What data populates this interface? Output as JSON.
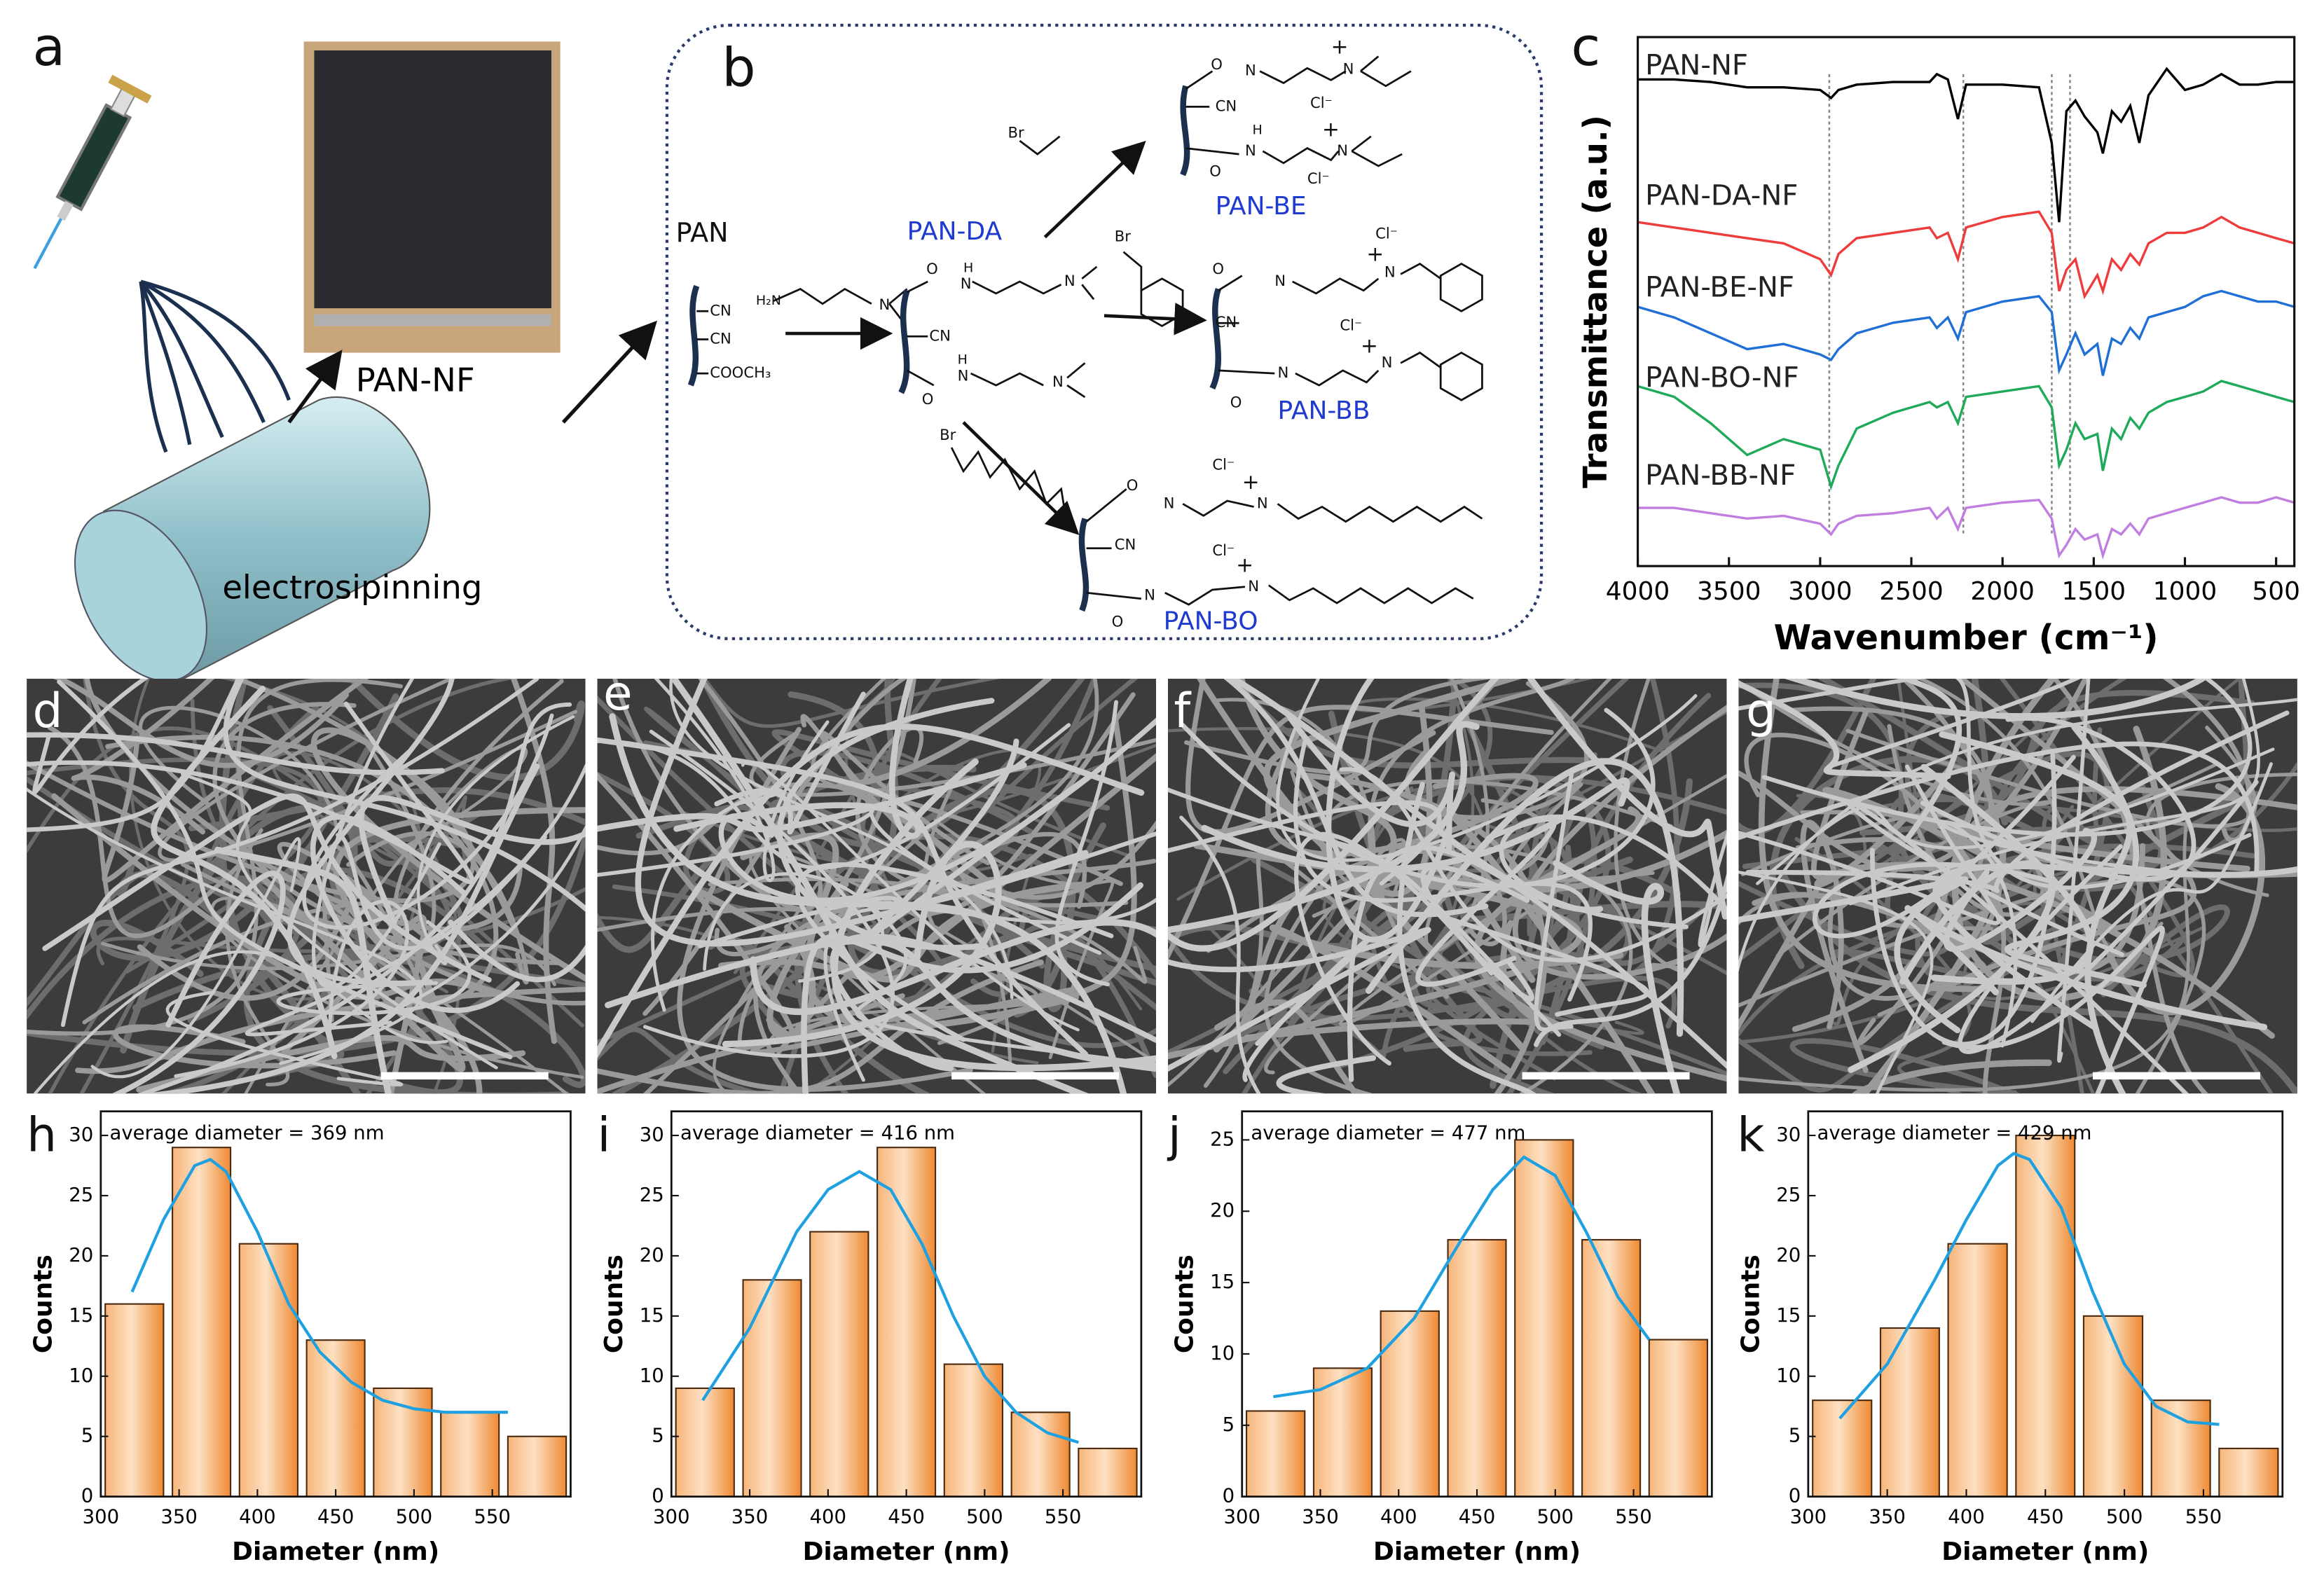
{
  "panel_labels": [
    "a",
    "b",
    "c",
    "d",
    "e",
    "f",
    "g",
    "h",
    "i",
    "j",
    "k"
  ],
  "panel_a": {
    "photo_label": "PAN-NF",
    "drum_label": "electrosipinning"
  },
  "scheme": {
    "texts": [
      "PAN",
      "CN",
      "CN",
      "COOCH₃",
      "H₂N",
      "N",
      "PAN-DA",
      "O",
      "N",
      "H",
      "N",
      "CN",
      "H",
      "N",
      "N",
      "O",
      "Br",
      "O",
      "N",
      "+",
      "N",
      "CN",
      "Cl⁻",
      "H",
      "N",
      "O",
      "+",
      "N",
      "Cl⁻",
      "PAN-BE",
      "Br",
      "Cl⁻",
      "+",
      "N",
      "O",
      "N",
      "CN",
      "Cl⁻",
      "+",
      "N",
      "N",
      "O",
      "PAN-BB",
      "Br",
      "Cl⁻",
      "+",
      "N",
      "O",
      "N",
      "CN",
      "Cl⁻",
      "+",
      "N",
      "N",
      "O",
      "PAN-BO"
    ]
  },
  "chart_data": [
    {
      "type": "line",
      "xlabel": "Wavenumber (cm⁻¹)",
      "ylabel": "Transmittance (a.u.)",
      "xlim": [
        4000,
        400
      ],
      "ylim": [
        0,
        100
      ],
      "xticks": [
        4000,
        3500,
        3000,
        2500,
        2000,
        1500,
        1000,
        500
      ],
      "reference_lines": [
        2950,
        2215,
        1730,
        1630
      ],
      "x": [
        4000,
        3800,
        3600,
        3400,
        3200,
        3000,
        2940,
        2900,
        2800,
        2600,
        2400,
        2360,
        2300,
        2245,
        2200,
        2000,
        1800,
        1730,
        1690,
        1650,
        1600,
        1550,
        1480,
        1450,
        1400,
        1350,
        1300,
        1250,
        1200,
        1100,
        1000,
        900,
        800,
        700,
        600,
        500,
        400
      ],
      "series": [
        {
          "name": "PAN-NF",
          "color": "#000000",
          "values": [
            92,
            92,
            91.5,
            90.5,
            90.5,
            90,
            88.5,
            90,
            91,
            91.5,
            91.5,
            93,
            92,
            84.5,
            91,
            91,
            90.5,
            80,
            65,
            86,
            88,
            85,
            82,
            78,
            86,
            84,
            87,
            80,
            89,
            94,
            90,
            91,
            93,
            91,
            91,
            91.5,
            91.5
          ]
        },
        {
          "name": "PAN-DA-NF",
          "color": "#ee3b3b",
          "values": [
            65,
            64,
            63,
            62,
            61,
            58,
            55,
            59,
            62,
            63,
            64,
            62,
            63,
            58,
            64,
            66,
            67,
            63,
            52,
            56,
            58,
            51,
            55,
            52,
            58,
            56,
            59,
            57,
            61,
            63,
            63,
            64,
            66,
            64,
            63,
            62,
            61
          ]
        },
        {
          "name": "PAN-BE-NF",
          "color": "#1f6fd6",
          "values": [
            49,
            47,
            44,
            41,
            42,
            40,
            39,
            41,
            44,
            46,
            47,
            45,
            47,
            43,
            48,
            50,
            51,
            48,
            37,
            40,
            44,
            40,
            42,
            36,
            43,
            42,
            45,
            43,
            47,
            48,
            49,
            51,
            52,
            51,
            50,
            50,
            49
          ]
        },
        {
          "name": "PAN-BO-NF",
          "color": "#1faa5a",
          "values": [
            34,
            32,
            27,
            21,
            24,
            22,
            15,
            19,
            26,
            29,
            31,
            30,
            31,
            27,
            32,
            33,
            34,
            30,
            19,
            22,
            27,
            24,
            25,
            18,
            26,
            24,
            28,
            26,
            29,
            31,
            32,
            33,
            35,
            34,
            33,
            32,
            31
          ]
        },
        {
          "name": "PAN-BB-NF",
          "color": "#c07ee0",
          "values": [
            11,
            11,
            10,
            9,
            9.5,
            8,
            6,
            8,
            9.5,
            10,
            11,
            9,
            11,
            7,
            11,
            12,
            12.5,
            9,
            2,
            4,
            7,
            5,
            6,
            2,
            7,
            6,
            8,
            6,
            9,
            10,
            11,
            12,
            13,
            12,
            12,
            13,
            12
          ]
        }
      ]
    },
    {
      "type": "histogram",
      "annotation": "average diameter = 369 nm",
      "xlabel": "Diameter (nm)",
      "ylabel": "Counts",
      "xlim": [
        300,
        600
      ],
      "ylim": [
        0,
        32
      ],
      "xticks": [
        300,
        350,
        400,
        450,
        500,
        550
      ],
      "yticks": [
        0,
        5,
        10,
        15,
        20,
        25,
        30
      ],
      "bins": [
        300,
        342.9,
        385.7,
        428.6,
        471.4,
        514.3,
        557.1,
        600
      ],
      "values": [
        16,
        29,
        21,
        13,
        9,
        7,
        5
      ],
      "fit": {
        "color": "#1fa0e0",
        "x": [
          320,
          340,
          360,
          370,
          380,
          400,
          420,
          440,
          460,
          480,
          500,
          520,
          560
        ],
        "values": [
          17,
          23,
          27.5,
          28,
          27,
          22,
          16,
          12,
          9.5,
          8,
          7.3,
          7,
          7
        ]
      }
    },
    {
      "type": "histogram",
      "annotation": "average diameter = 416 nm",
      "xlabel": "Diameter (nm)",
      "ylabel": "Counts",
      "xlim": [
        300,
        600
      ],
      "ylim": [
        0,
        32
      ],
      "xticks": [
        300,
        350,
        400,
        450,
        500,
        550
      ],
      "yticks": [
        0,
        5,
        10,
        15,
        20,
        25,
        30
      ],
      "bins": [
        300,
        342.9,
        385.7,
        428.6,
        471.4,
        514.3,
        557.1,
        600
      ],
      "values": [
        9,
        18,
        22,
        29,
        11,
        7,
        4
      ],
      "fit": {
        "color": "#1fa0e0",
        "x": [
          320,
          350,
          380,
          400,
          420,
          440,
          460,
          480,
          500,
          520,
          540,
          560
        ],
        "values": [
          8,
          14,
          22,
          25.5,
          27,
          25.5,
          21,
          15,
          10,
          7,
          5.3,
          4.5
        ]
      }
    },
    {
      "type": "histogram",
      "annotation": "average diameter = 477 nm",
      "xlabel": "Diameter (nm)",
      "ylabel": "Counts",
      "xlim": [
        300,
        600
      ],
      "ylim": [
        0,
        27
      ],
      "xticks": [
        300,
        350,
        400,
        450,
        500,
        550
      ],
      "yticks": [
        0,
        5,
        10,
        15,
        20,
        25
      ],
      "bins": [
        300,
        342.9,
        385.7,
        428.6,
        471.4,
        514.3,
        557.1,
        600
      ],
      "values": [
        6,
        9,
        13,
        18,
        25,
        18,
        11
      ],
      "fit": {
        "color": "#1fa0e0",
        "x": [
          320,
          350,
          380,
          410,
          440,
          460,
          480,
          500,
          520,
          540,
          560
        ],
        "values": [
          7,
          7.5,
          9,
          12.5,
          18,
          21.5,
          23.8,
          22.5,
          18.5,
          14,
          11
        ]
      }
    },
    {
      "type": "histogram",
      "annotation": "average diameter = 429 nm",
      "xlabel": "Diameter (nm)",
      "ylabel": "Counts",
      "xlim": [
        300,
        600
      ],
      "ylim": [
        0,
        32
      ],
      "xticks": [
        300,
        350,
        400,
        450,
        500,
        550
      ],
      "yticks": [
        0,
        5,
        10,
        15,
        20,
        25,
        30
      ],
      "bins": [
        300,
        342.9,
        385.7,
        428.6,
        471.4,
        514.3,
        557.1,
        600
      ],
      "values": [
        8,
        14,
        21,
        30,
        15,
        8,
        4
      ],
      "fit": {
        "color": "#1fa0e0",
        "x": [
          320,
          350,
          380,
          400,
          420,
          430,
          440,
          460,
          480,
          500,
          520,
          540,
          560
        ],
        "values": [
          6.5,
          11,
          18,
          23,
          27.5,
          28.5,
          28,
          24,
          17,
          11,
          7.5,
          6.2,
          6
        ]
      }
    }
  ]
}
